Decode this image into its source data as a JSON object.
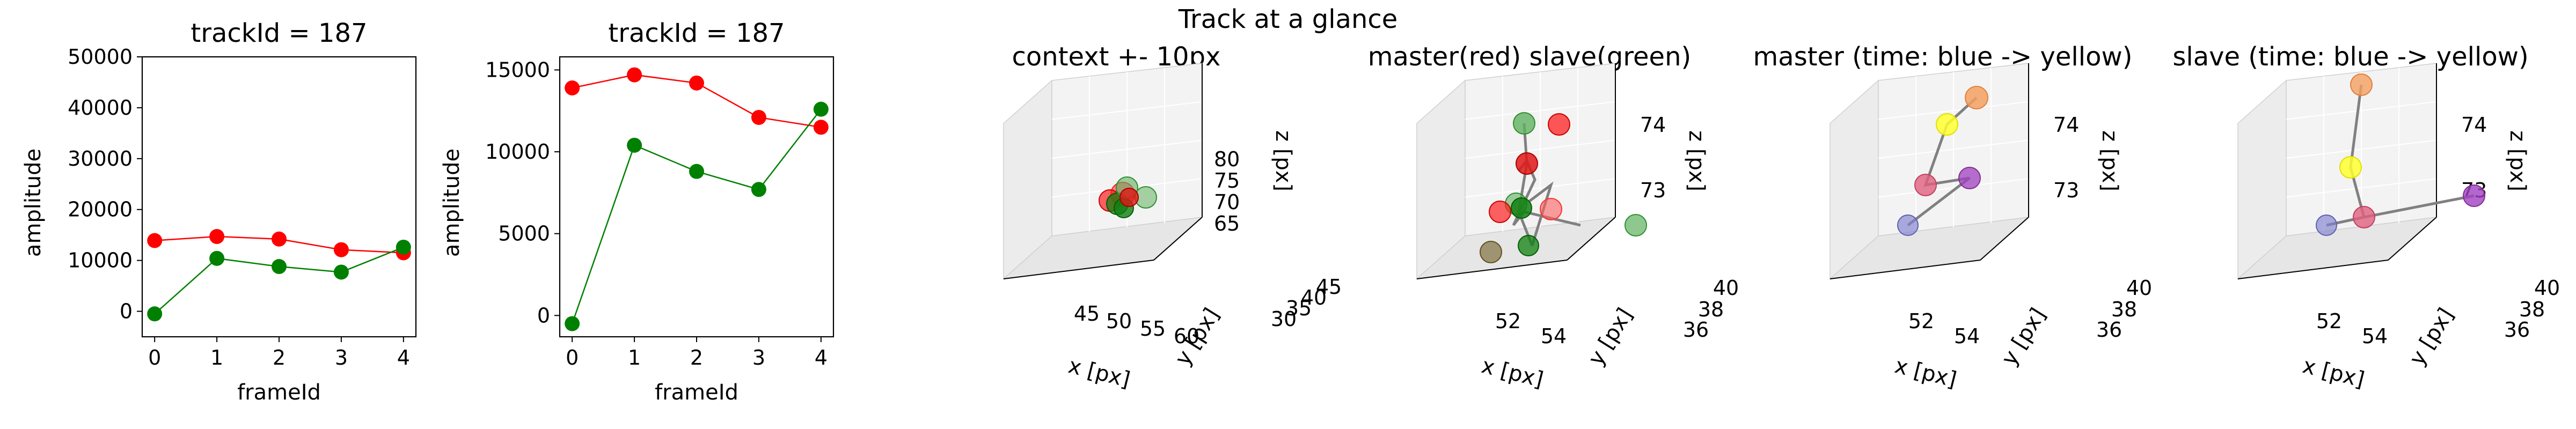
{
  "figure": {
    "suptitle": "Track at a glance"
  },
  "chart_data": [
    {
      "type": "line",
      "title": "trackId = 187",
      "xlabel": "frameId",
      "ylabel": "amplitude",
      "xlim": [
        -0.2,
        4.2
      ],
      "ylim": [
        -5000,
        50000
      ],
      "xticks": [
        0,
        1,
        2,
        3,
        4
      ],
      "yticks": [
        0,
        10000,
        20000,
        30000,
        40000,
        50000
      ],
      "series": [
        {
          "color": "#ff0000",
          "x": [
            0,
            1,
            2,
            3,
            4
          ],
          "values": [
            13900,
            14700,
            14200,
            12100,
            11500
          ]
        },
        {
          "color": "#008000",
          "x": [
            0,
            1,
            2,
            3,
            4
          ],
          "values": [
            -500,
            10400,
            8800,
            7700,
            12600
          ]
        }
      ]
    },
    {
      "type": "line",
      "title": "trackId = 187",
      "xlabel": "frameId",
      "ylabel": "amplitude",
      "xlim": [
        -0.2,
        4.2
      ],
      "ylim": [
        -1300,
        15800
      ],
      "xticks": [
        0,
        1,
        2,
        3,
        4
      ],
      "yticks": [
        0,
        5000,
        10000,
        15000
      ],
      "series": [
        {
          "color": "#ff0000",
          "x": [
            0,
            1,
            2,
            3,
            4
          ],
          "values": [
            13900,
            14700,
            14200,
            12100,
            11500
          ]
        },
        {
          "color": "#008000",
          "x": [
            0,
            1,
            2,
            3,
            4
          ],
          "values": [
            -500,
            10400,
            8800,
            7700,
            12600
          ]
        }
      ]
    },
    {
      "type": "scatter",
      "title": "context +- 10px",
      "xlabel": "x [px]",
      "ylabel": "y [px]",
      "zlabel": "z [px]",
      "xticks": [
        "45",
        "50",
        "55",
        "60"
      ],
      "yticks": [
        "30",
        "35",
        "40",
        "45"
      ],
      "zticks": [
        "65",
        "70",
        "75",
        "80"
      ]
    },
    {
      "type": "scatter",
      "title": "master(red) slave(green)",
      "xlabel": "x [px]",
      "ylabel": "y [px]",
      "zlabel": "z [px]",
      "xticks": [
        "52",
        "54"
      ],
      "yticks": [
        "36",
        "38",
        "40"
      ],
      "zticks": [
        "73",
        "74"
      ]
    },
    {
      "type": "scatter",
      "title": "master (time: blue -> yellow)",
      "xlabel": "x [px]",
      "ylabel": "y [px]",
      "zlabel": "z [px]",
      "xticks": [
        "52",
        "54"
      ],
      "yticks": [
        "36",
        "38",
        "40"
      ],
      "zticks": [
        "73",
        "74"
      ]
    },
    {
      "type": "scatter",
      "title": "slave (time: blue -> yellow)",
      "xlabel": "x [px]",
      "ylabel": "y [px]",
      "zlabel": "z [px]",
      "xticks": [
        "52",
        "54"
      ],
      "yticks": [
        "36",
        "38",
        "40"
      ],
      "zticks": [
        "73",
        "74"
      ]
    }
  ]
}
